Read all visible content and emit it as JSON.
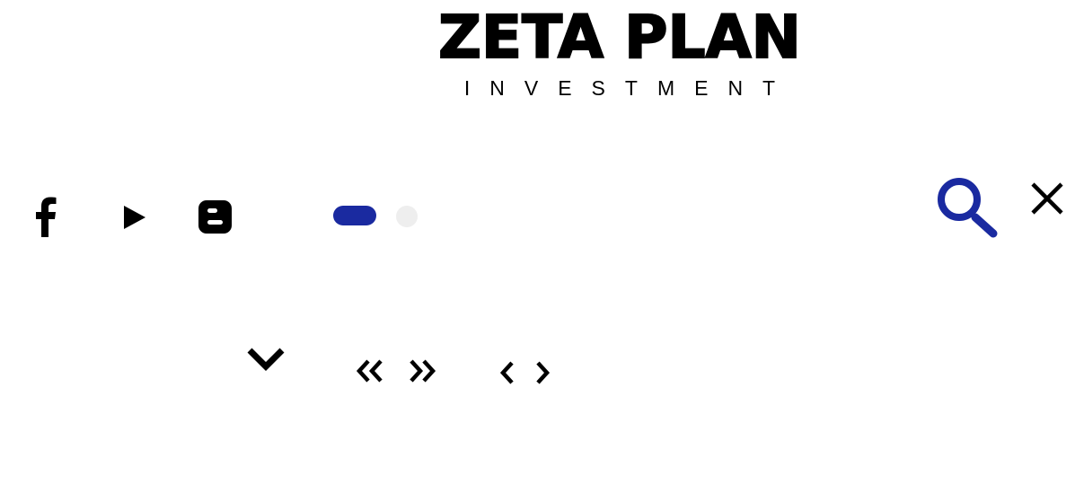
{
  "brand": {
    "title": "ZETA PLAN",
    "subtitle": "INVESTMENT"
  },
  "social": {
    "icons": [
      "facebook-icon",
      "youtube-play-icon",
      "blogger-icon"
    ]
  },
  "slider_dots": {
    "active_color": "#1a2aa0",
    "inactive_color": "#eeeeee",
    "count": 2,
    "active_index": 0
  },
  "header_actions": {
    "icons": [
      "search-icon",
      "close-icon"
    ],
    "accent_color": "#1a2aa0"
  },
  "navigation_icons": [
    "chevron-down-icon",
    "double-chevron-left-icon",
    "double-chevron-right-icon",
    "chevron-left-icon",
    "chevron-right-icon"
  ]
}
